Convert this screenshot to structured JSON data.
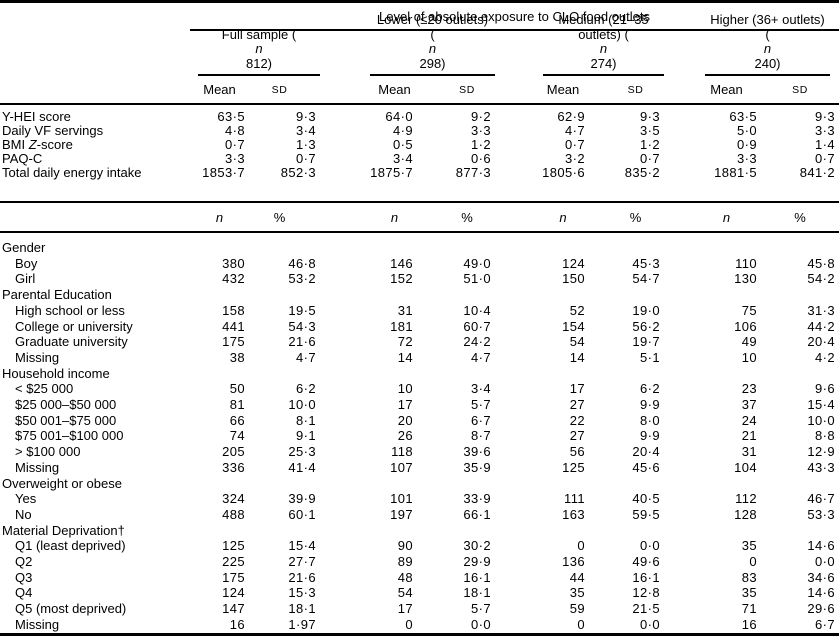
{
  "colors": {
    "text": "#000000",
    "rule": "#000000",
    "background": "#ffffff"
  },
  "table": {
    "spanner": "Level of absolute exposure to CLO food outlets",
    "groups": [
      {
        "label_html": "Full sample (<i>n</i> 812)"
      },
      {
        "label_html": "Lower (≤20 outlets)<br>(<i>n</i> 298)"
      },
      {
        "label_html": "Medium (21–35<br>outlets) (<i>n</i> 274)"
      },
      {
        "label_html": "Higher (36+ outlets)<br>(<i>n</i> 240)"
      }
    ],
    "stat_headers": {
      "mean": "Mean",
      "sd": "SD"
    },
    "count_headers": {
      "n": "n",
      "pct": "%"
    },
    "continuous_rows": [
      {
        "label_html": "Y-HEI score",
        "indent": false,
        "values": [
          "63·5",
          "9·3",
          "64·0",
          "9·2",
          "62·9",
          "9·3",
          "63·5",
          "9·3"
        ]
      },
      {
        "label_html": "Daily VF servings",
        "indent": false,
        "values": [
          "4·8",
          "3·4",
          "4·9",
          "3·3",
          "4·7",
          "3·5",
          "5·0",
          "3·3"
        ]
      },
      {
        "label_html": "BMI <i>Z</i>-score",
        "indent": false,
        "values": [
          "0·7",
          "1·3",
          "0·5",
          "1·2",
          "0·7",
          "1·2",
          "0·9",
          "1·4"
        ]
      },
      {
        "label_html": "PAQ-C",
        "indent": false,
        "values": [
          "3·3",
          "0·7",
          "3·4",
          "0·6",
          "3·2",
          "0·7",
          "3·3",
          "0·7"
        ]
      },
      {
        "label_html": "Total daily energy intake",
        "indent": false,
        "values": [
          "1853·7",
          "852·3",
          "1875·7",
          "877·3",
          "1805·6",
          "835·2",
          "1881·5",
          "841·2"
        ]
      }
    ],
    "categorical_rows": [
      {
        "label_html": "Gender",
        "indent": false,
        "values": []
      },
      {
        "label_html": "Boy",
        "indent": true,
        "values": [
          "380",
          "46·8",
          "146",
          "49·0",
          "124",
          "45·3",
          "110",
          "45·8"
        ]
      },
      {
        "label_html": "Girl",
        "indent": true,
        "values": [
          "432",
          "53·2",
          "152",
          "51·0",
          "150",
          "54·7",
          "130",
          "54·2"
        ]
      },
      {
        "label_html": "Parental Education",
        "indent": false,
        "values": []
      },
      {
        "label_html": "High school or less",
        "indent": true,
        "values": [
          "158",
          "19·5",
          "31",
          "10·4",
          "52",
          "19·0",
          "75",
          "31·3"
        ]
      },
      {
        "label_html": "College or university",
        "indent": true,
        "values": [
          "441",
          "54·3",
          "181",
          "60·7",
          "154",
          "56·2",
          "106",
          "44·2"
        ]
      },
      {
        "label_html": "Graduate university",
        "indent": true,
        "values": [
          "175",
          "21·6",
          "72",
          "24·2",
          "54",
          "19·7",
          "49",
          "20·4"
        ]
      },
      {
        "label_html": "Missing",
        "indent": true,
        "values": [
          "38",
          "4·7",
          "14",
          "4·7",
          "14",
          "5·1",
          "10",
          "4·2"
        ]
      },
      {
        "label_html": "Household income",
        "indent": false,
        "values": []
      },
      {
        "label_html": "&lt; $25 000",
        "indent": true,
        "values": [
          "50",
          "6·2",
          "10",
          "3·4",
          "17",
          "6·2",
          "23",
          "9·6"
        ]
      },
      {
        "label_html": "$25 000–$50 000",
        "indent": true,
        "values": [
          "81",
          "10·0",
          "17",
          "5·7",
          "27",
          "9·9",
          "37",
          "15·4"
        ]
      },
      {
        "label_html": "$50 001–$75 000",
        "indent": true,
        "values": [
          "66",
          "8·1",
          "20",
          "6·7",
          "22",
          "8·0",
          "24",
          "10·0"
        ]
      },
      {
        "label_html": "$75 001–$100 000",
        "indent": true,
        "values": [
          "74",
          "9·1",
          "26",
          "8·7",
          "27",
          "9·9",
          "21",
          "8·8"
        ]
      },
      {
        "label_html": "&gt; $100 000",
        "indent": true,
        "values": [
          "205",
          "25·3",
          "118",
          "39·6",
          "56",
          "20·4",
          "31",
          "12·9"
        ]
      },
      {
        "label_html": "Missing",
        "indent": true,
        "values": [
          "336",
          "41·4",
          "107",
          "35·9",
          "125",
          "45·6",
          "104",
          "43·3"
        ]
      },
      {
        "label_html": "Overweight or obese",
        "indent": false,
        "values": []
      },
      {
        "label_html": "Yes",
        "indent": true,
        "values": [
          "324",
          "39·9",
          "101",
          "33·9",
          "111",
          "40·5",
          "112",
          "46·7"
        ]
      },
      {
        "label_html": "No",
        "indent": true,
        "values": [
          "488",
          "60·1",
          "197",
          "66·1",
          "163",
          "59·5",
          "128",
          "53·3"
        ]
      },
      {
        "label_html": "Material Deprivation†",
        "indent": false,
        "values": []
      },
      {
        "label_html": "Q1 (least deprived)",
        "indent": true,
        "values": [
          "125",
          "15·4",
          "90",
          "30·2",
          "0",
          "0·0",
          "35",
          "14·6"
        ]
      },
      {
        "label_html": "Q2",
        "indent": true,
        "values": [
          "225",
          "27·7",
          "89",
          "29·9",
          "136",
          "49·6",
          "0",
          "0·0"
        ]
      },
      {
        "label_html": "Q3",
        "indent": true,
        "values": [
          "175",
          "21·6",
          "48",
          "16·1",
          "44",
          "16·1",
          "83",
          "34·6"
        ]
      },
      {
        "label_html": "Q4",
        "indent": true,
        "values": [
          "124",
          "15·3",
          "54",
          "18·1",
          "35",
          "12·8",
          "35",
          "14·6"
        ]
      },
      {
        "label_html": "Q5 (most deprived)",
        "indent": true,
        "values": [
          "147",
          "18·1",
          "17",
          "5·7",
          "59",
          "21·5",
          "71",
          "29·6"
        ]
      },
      {
        "label_html": "Missing",
        "indent": true,
        "values": [
          "16",
          "1·97",
          "0",
          "0·0",
          "0",
          "0·0",
          "16",
          "6·7"
        ]
      }
    ]
  }
}
